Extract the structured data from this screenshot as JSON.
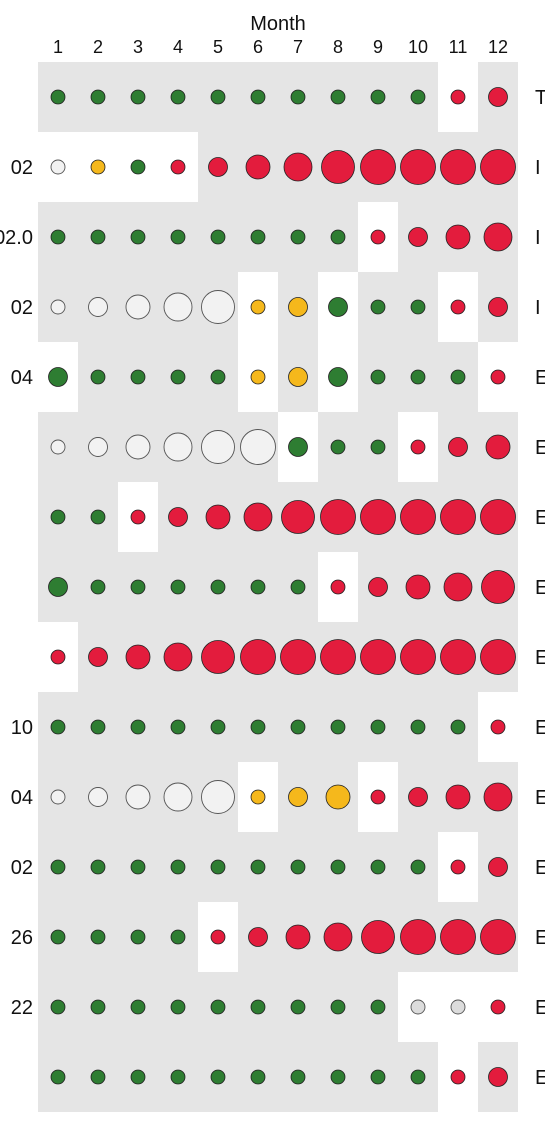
{
  "chart_data": {
    "type": "scatter",
    "title": "",
    "xlabel": "Month",
    "ylabel": "",
    "x": [
      "1",
      "2",
      "3",
      "4",
      "5",
      "6",
      "7",
      "8",
      "9",
      "10",
      "11",
      "12"
    ],
    "row_labels_left": [
      "",
      "02",
      "02.0",
      "02",
      "04",
      "",
      "",
      "",
      "",
      "10",
      "04",
      "02",
      "26",
      "22",
      ""
    ],
    "row_labels_right": [
      "T",
      "I",
      "I",
      "I",
      "E",
      "E",
      "E",
      "E",
      "E",
      "E",
      "E",
      "E",
      "E",
      "E",
      "E"
    ],
    "status_colors": {
      "g": "#2e7d32",
      "y": "#f5b81c",
      "r": "#e31c3d",
      "e": "#f2f2f2",
      "l": "#dcdcdc"
    },
    "highlight_color": "#ffffff",
    "background_color": "#e5e5e5",
    "status_legend": {
      "g": "green",
      "y": "amber",
      "r": "red",
      "e": "empty",
      "l": "light grey"
    },
    "rows": [
      {
        "status": [
          "g",
          "g",
          "g",
          "g",
          "g",
          "g",
          "g",
          "g",
          "g",
          "g",
          "r",
          "r"
        ],
        "level": [
          1,
          1,
          1,
          1,
          1,
          1,
          1,
          1,
          1,
          1,
          1,
          2
        ],
        "highlight": [
          11
        ]
      },
      {
        "status": [
          "e",
          "y",
          "g",
          "r",
          "r",
          "r",
          "r",
          "r",
          "r",
          "r",
          "r",
          "r"
        ],
        "level": [
          1,
          1,
          1,
          1,
          2,
          3,
          4,
          5,
          6,
          6,
          6,
          6
        ],
        "highlight": [
          1,
          2,
          3,
          4
        ]
      },
      {
        "status": [
          "g",
          "g",
          "g",
          "g",
          "g",
          "g",
          "g",
          "g",
          "r",
          "r",
          "r",
          "r"
        ],
        "level": [
          1,
          1,
          1,
          1,
          1,
          1,
          1,
          1,
          1,
          2,
          3,
          4
        ],
        "highlight": [
          9
        ]
      },
      {
        "status": [
          "e",
          "e",
          "e",
          "e",
          "e",
          "y",
          "y",
          "g",
          "g",
          "g",
          "r",
          "r"
        ],
        "level": [
          1,
          2,
          3,
          4,
          5,
          1,
          2,
          2,
          1,
          1,
          1,
          2
        ],
        "highlight": [
          6,
          8,
          11
        ]
      },
      {
        "status": [
          "g",
          "g",
          "g",
          "g",
          "g",
          "y",
          "y",
          "g",
          "g",
          "g",
          "g",
          "r"
        ],
        "level": [
          2,
          1,
          1,
          1,
          1,
          1,
          2,
          2,
          1,
          1,
          1,
          1
        ],
        "highlight": [
          1,
          6,
          8,
          12
        ]
      },
      {
        "status": [
          "e",
          "e",
          "e",
          "e",
          "e",
          "e",
          "g",
          "g",
          "g",
          "r",
          "r",
          "r"
        ],
        "level": [
          1,
          2,
          3,
          4,
          5,
          6,
          2,
          1,
          1,
          1,
          2,
          3
        ],
        "highlight": [
          7,
          10
        ]
      },
      {
        "status": [
          "g",
          "g",
          "r",
          "r",
          "r",
          "r",
          "r",
          "r",
          "r",
          "r",
          "r",
          "r"
        ],
        "level": [
          1,
          1,
          1,
          2,
          3,
          4,
          5,
          6,
          6,
          6,
          6,
          6
        ],
        "highlight": [
          3
        ]
      },
      {
        "status": [
          "g",
          "g",
          "g",
          "g",
          "g",
          "g",
          "g",
          "r",
          "r",
          "r",
          "r",
          "r"
        ],
        "level": [
          2,
          1,
          1,
          1,
          1,
          1,
          1,
          1,
          2,
          3,
          4,
          5
        ],
        "highlight": [
          8
        ]
      },
      {
        "status": [
          "r",
          "r",
          "r",
          "r",
          "r",
          "r",
          "r",
          "r",
          "r",
          "r",
          "r",
          "r"
        ],
        "level": [
          1,
          2,
          3,
          4,
          5,
          6,
          6,
          6,
          6,
          6,
          6,
          6
        ],
        "highlight": [
          1
        ]
      },
      {
        "status": [
          "g",
          "g",
          "g",
          "g",
          "g",
          "g",
          "g",
          "g",
          "g",
          "g",
          "g",
          "r"
        ],
        "level": [
          1,
          1,
          1,
          1,
          1,
          1,
          1,
          1,
          1,
          1,
          1,
          1
        ],
        "highlight": [
          12
        ]
      },
      {
        "status": [
          "e",
          "e",
          "e",
          "e",
          "e",
          "y",
          "y",
          "y",
          "r",
          "r",
          "r",
          "r"
        ],
        "level": [
          1,
          2,
          3,
          4,
          5,
          1,
          2,
          3,
          1,
          2,
          3,
          4
        ],
        "highlight": [
          6,
          9
        ]
      },
      {
        "status": [
          "g",
          "g",
          "g",
          "g",
          "g",
          "g",
          "g",
          "g",
          "g",
          "g",
          "r",
          "r"
        ],
        "level": [
          1,
          1,
          1,
          1,
          1,
          1,
          1,
          1,
          1,
          1,
          1,
          2
        ],
        "highlight": [
          11
        ]
      },
      {
        "status": [
          "g",
          "g",
          "g",
          "g",
          "r",
          "r",
          "r",
          "r",
          "r",
          "r",
          "r",
          "r"
        ],
        "level": [
          1,
          1,
          1,
          1,
          1,
          2,
          3,
          4,
          5,
          6,
          6,
          6
        ],
        "highlight": [
          5
        ]
      },
      {
        "status": [
          "g",
          "g",
          "g",
          "g",
          "g",
          "g",
          "g",
          "g",
          "g",
          "l",
          "l",
          "r"
        ],
        "level": [
          1,
          1,
          1,
          1,
          1,
          1,
          1,
          1,
          1,
          1,
          1,
          1
        ],
        "highlight": [
          10,
          11,
          12
        ]
      },
      {
        "status": [
          "g",
          "g",
          "g",
          "g",
          "g",
          "g",
          "g",
          "g",
          "g",
          "g",
          "r",
          "r"
        ],
        "level": [
          1,
          1,
          1,
          1,
          1,
          1,
          1,
          1,
          1,
          1,
          1,
          2
        ],
        "highlight": [
          11
        ]
      }
    ]
  }
}
